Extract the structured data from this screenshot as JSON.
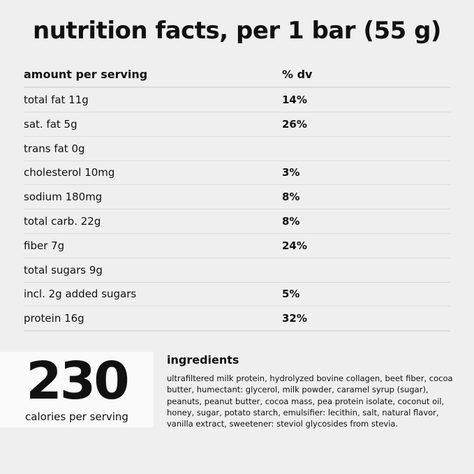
{
  "header": {
    "title": "nutrition facts, per 1 bar (55 g)"
  },
  "table": {
    "columns": [
      "amount per serving",
      "% dv"
    ],
    "rows": [
      [
        "total fat 11g",
        "14%"
      ],
      [
        "sat. fat 5g",
        "26%"
      ],
      [
        "trans fat 0g",
        null
      ],
      [
        "cholesterol 10mg",
        "3%"
      ],
      [
        "sodium 180mg",
        "8%"
      ],
      [
        "total carb. 22g",
        "8%"
      ],
      [
        "fiber 7g",
        "24%"
      ],
      [
        "total sugars 9g",
        null
      ],
      [
        "incl. 2g added sugars",
        "5%"
      ],
      [
        "protein 16g",
        "32%"
      ]
    ]
  },
  "calories": {
    "value": "230",
    "label": "calories per serving"
  },
  "ingredients": {
    "title": "ingredients",
    "lines": [
      "ultrafiltered milk protein, hydrolyzed bovine collagen, beet fiber, cocoa",
      "butter, humectant: glycerol, milk powder, caramel syrup (sugar),",
      "peanuts, peanut butter, cocoa mass, pea protein isolate, coconut oil,",
      "honey, sugar, potato starch, emulsifier: lecithin, salt, natural flavor,",
      "vanilla extract, sweetener: steviol glycosides from stevia."
    ]
  }
}
